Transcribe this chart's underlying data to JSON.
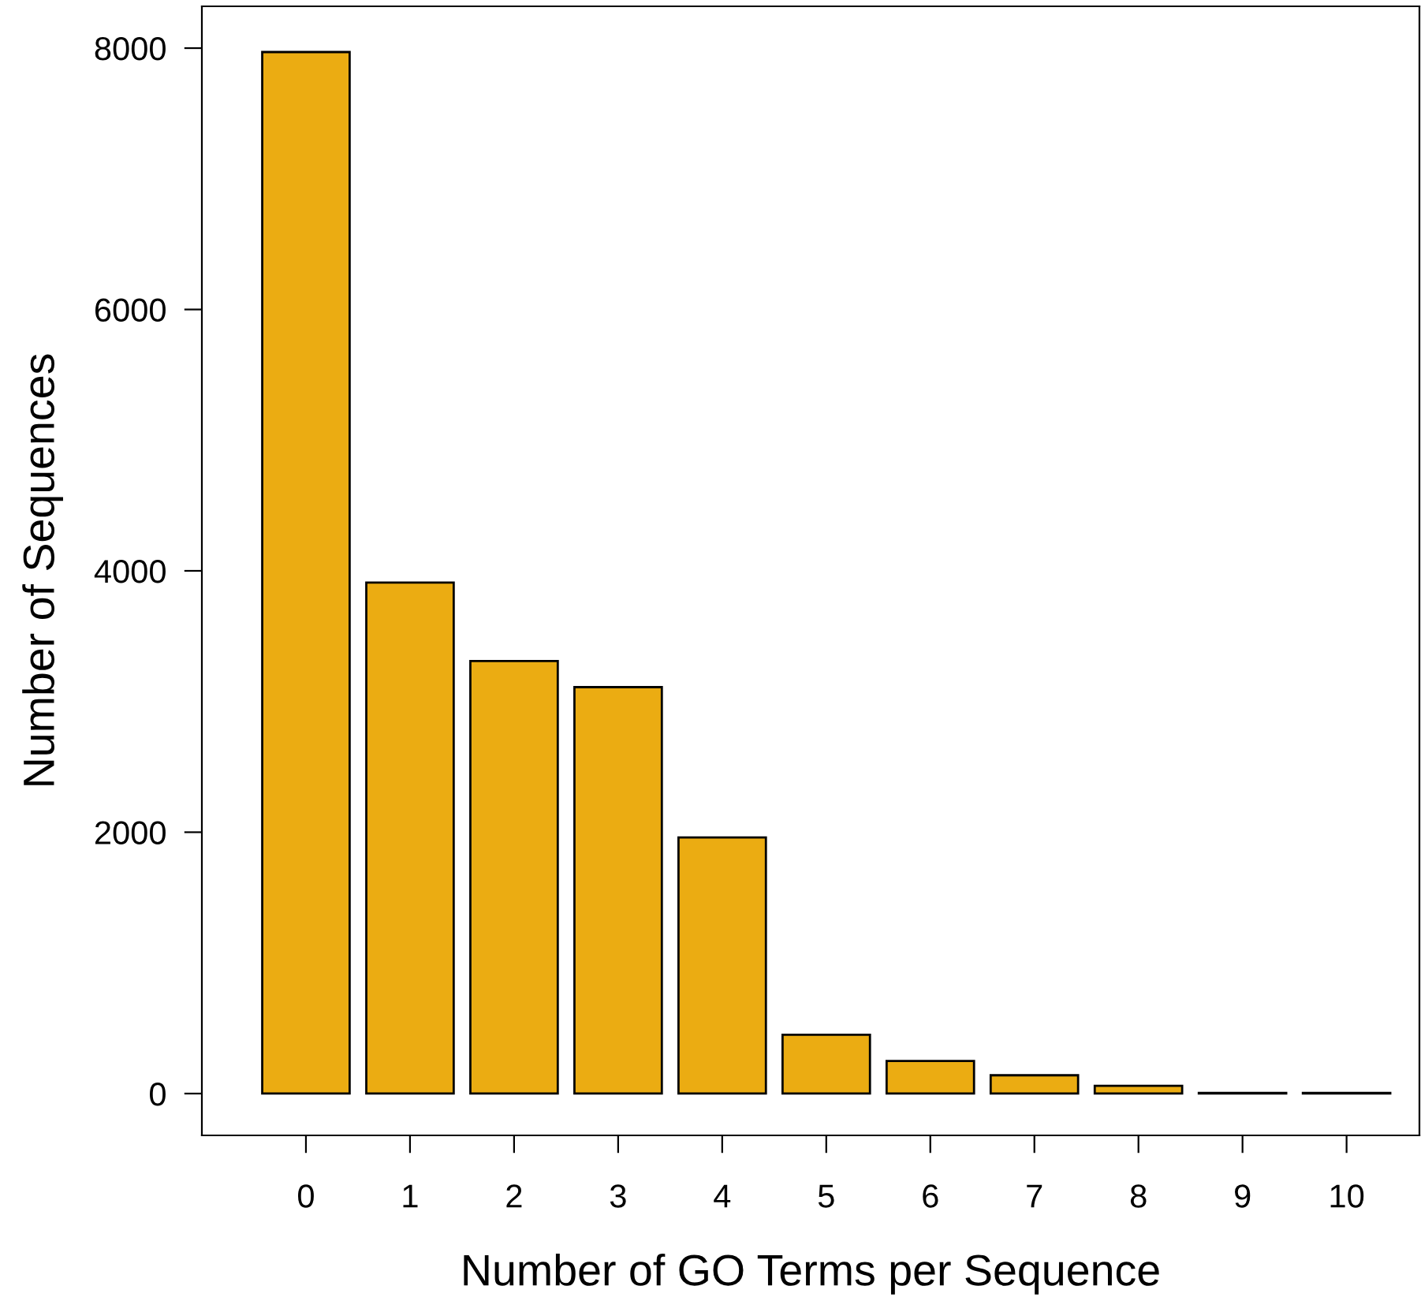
{
  "chart_data": {
    "type": "bar",
    "xlabel": "Number of GO Terms per Sequence",
    "ylabel": "Number of Sequences",
    "categories": [
      "0",
      "1",
      "2",
      "3",
      "4",
      "5",
      "6",
      "7",
      "8",
      "9",
      "10"
    ],
    "values": [
      7970,
      3910,
      3310,
      3110,
      1960,
      450,
      250,
      140,
      60,
      5,
      5
    ],
    "color": "#ebac12",
    "ylim": [
      -320,
      8320
    ],
    "yticks": [
      0,
      2000,
      4000,
      6000,
      8000
    ],
    "grid": false,
    "legend": false
  }
}
